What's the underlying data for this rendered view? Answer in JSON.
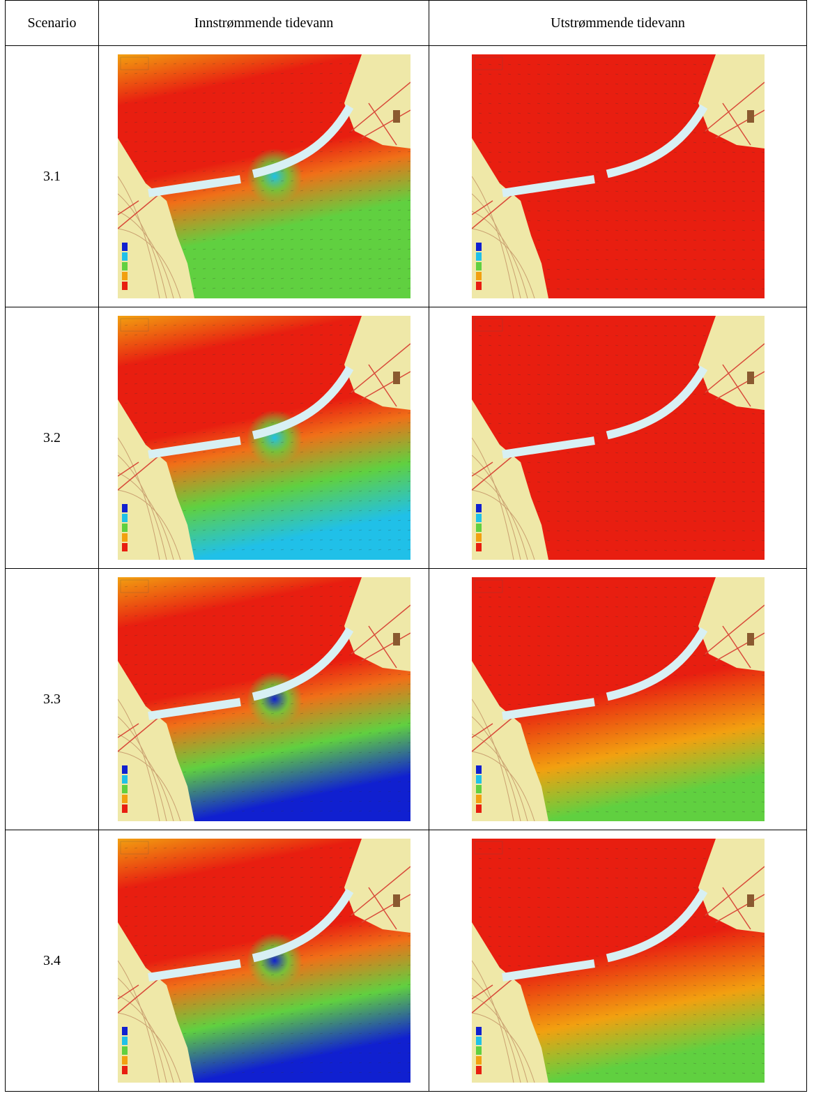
{
  "table": {
    "headers": [
      "Scenario",
      "Innstrømmende tidevann",
      "Utstrømmende tidevann"
    ],
    "rows": [
      {
        "scenario": "3.1",
        "inflow": "inflow-map",
        "outflow": "outflow-map"
      },
      {
        "scenario": "3.2",
        "inflow": "inflow-map",
        "outflow": "outflow-map"
      },
      {
        "scenario": "3.3",
        "inflow": "inflow-map",
        "outflow": "outflow-map"
      },
      {
        "scenario": "3.4",
        "inflow": "inflow-map",
        "outflow": "outflow-map"
      }
    ]
  },
  "colors": {
    "land": "#efe8a8",
    "land_contour": "#c9a070",
    "road": "#d84a3a",
    "breakwater": "#d8f0f4",
    "slow": "#e81e10",
    "mid": "#f2a010",
    "fast_green": "#60d040",
    "faster_cyan": "#20c0e8",
    "fastest_blue": "#1020d0"
  }
}
